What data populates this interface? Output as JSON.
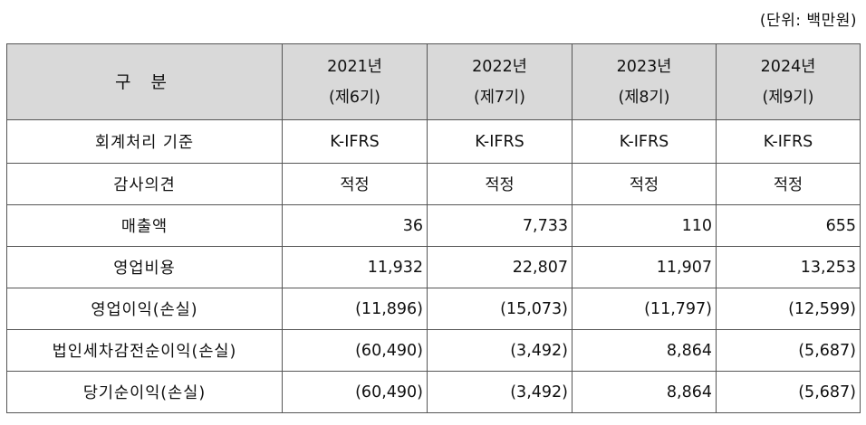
{
  "unit": "(단위: 백만원)",
  "table": {
    "header_label": "구 분",
    "columns": [
      {
        "year": "2021년",
        "term": "(제6기)"
      },
      {
        "year": "2022년",
        "term": "(제7기)"
      },
      {
        "year": "2023년",
        "term": "(제8기)"
      },
      {
        "year": "2024년",
        "term": "(제9기)"
      }
    ],
    "rows": [
      {
        "label": "회계처리 기준",
        "align": "center",
        "values": [
          "K-IFRS",
          "K-IFRS",
          "K-IFRS",
          "K-IFRS"
        ]
      },
      {
        "label": "감사의견",
        "align": "center",
        "values": [
          "적정",
          "적정",
          "적정",
          "적정"
        ]
      },
      {
        "label": "매출액",
        "align": "num",
        "values": [
          "36",
          "7,733",
          "110",
          "655"
        ]
      },
      {
        "label": "영업비용",
        "align": "num",
        "values": [
          "11,932",
          "22,807",
          "11,907",
          "13,253"
        ]
      },
      {
        "label": "영업이익(손실)",
        "align": "num",
        "values": [
          "(11,896)",
          "(15,073)",
          "(11,797)",
          "(12,599)"
        ]
      },
      {
        "label": "법인세차감전순이익(손실)",
        "align": "num",
        "values": [
          "(60,490)",
          "(3,492)",
          "8,864",
          "(5,687)"
        ]
      },
      {
        "label": "당기순이익(손실)",
        "align": "num",
        "values": [
          "(60,490)",
          "(3,492)",
          "8,864",
          "(5,687)"
        ]
      }
    ]
  }
}
